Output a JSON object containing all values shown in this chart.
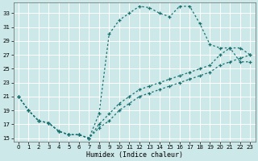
{
  "xlabel": "Humidex (Indice chaleur)",
  "bg_color": "#cce8e8",
  "line_color": "#1a7070",
  "grid_color": "#ffffff",
  "xlim": [
    0,
    23
  ],
  "ylim": [
    15,
    34
  ],
  "xticks": [
    0,
    1,
    2,
    3,
    4,
    5,
    6,
    7,
    8,
    9,
    10,
    11,
    12,
    13,
    14,
    15,
    16,
    17,
    18,
    19,
    20,
    21,
    22,
    23
  ],
  "yticks": [
    15,
    17,
    19,
    21,
    23,
    25,
    27,
    29,
    31,
    33
  ],
  "curve1_x": [
    0,
    1,
    2,
    3,
    4,
    5,
    6,
    7,
    8,
    9,
    10,
    11,
    12,
    13,
    14,
    15,
    16,
    17,
    18,
    19,
    20,
    21,
    22,
    23
  ],
  "curve1_y": [
    21,
    19,
    17.5,
    17.2,
    16,
    15.5,
    15.5,
    15,
    18.5,
    30,
    32,
    33,
    34,
    33.8,
    33,
    32.5,
    34,
    34,
    31.5,
    28.5,
    28,
    28,
    26,
    26
  ],
  "curve2_x": [
    0,
    1,
    2,
    3,
    4,
    5,
    6,
    7,
    8,
    9,
    10,
    11,
    12,
    13,
    14,
    15,
    16,
    17,
    18,
    19,
    20,
    21,
    22,
    23
  ],
  "curve2_y": [
    21,
    19,
    17.5,
    17.2,
    16,
    15.5,
    15.5,
    15,
    17,
    18.5,
    20,
    21,
    22,
    22.5,
    23,
    23.5,
    24,
    24.5,
    25,
    25.5,
    27,
    28,
    28,
    27
  ],
  "curve3_x": [
    0,
    1,
    2,
    3,
    4,
    5,
    6,
    7,
    8,
    9,
    10,
    11,
    12,
    13,
    14,
    15,
    16,
    17,
    18,
    19,
    20,
    21,
    22,
    23
  ],
  "curve3_y": [
    21,
    19,
    17.5,
    17.2,
    16,
    15.5,
    15.5,
    15,
    16.5,
    17.5,
    19,
    20,
    21,
    21.5,
    22,
    22.5,
    23,
    23.5,
    24,
    24.5,
    25.5,
    26,
    26.5,
    27
  ]
}
